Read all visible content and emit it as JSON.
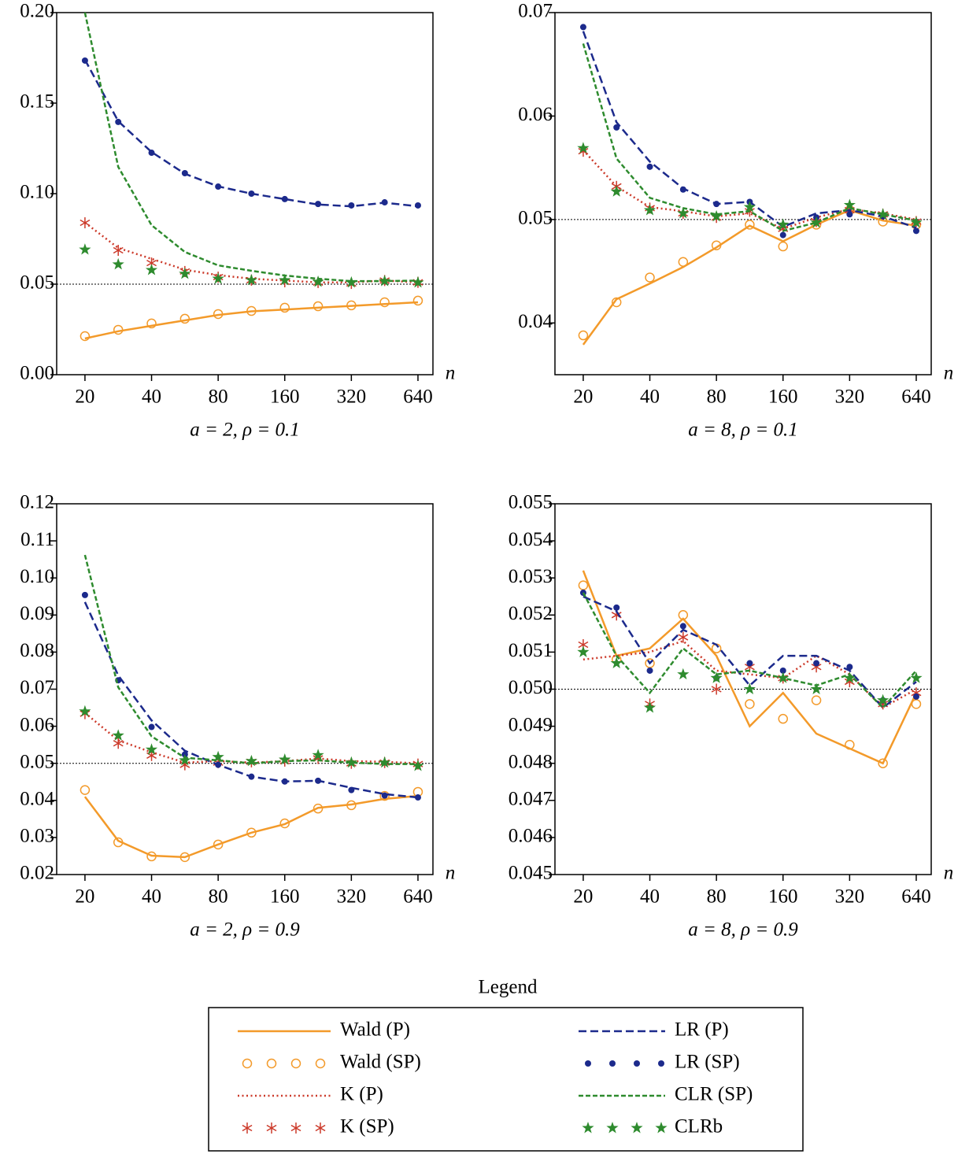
{
  "chart_data": [
    {
      "type": "line",
      "xlabel": "a = 2, ρ = 0.1",
      "xaxis_symbol": "n",
      "xlog": true,
      "x": [
        20,
        28.28,
        40,
        56.57,
        80,
        113.1,
        160,
        226.3,
        320,
        452.5,
        640
      ],
      "xlim": [
        14.9,
        748
      ],
      "xticks": [
        20,
        40,
        80,
        160,
        320,
        640
      ],
      "ylim": [
        0,
        0.2
      ],
      "yticks": [
        {
          "value": 0,
          "label": "0.00"
        },
        0.05,
        {
          "value": 0.1,
          "label": "0.10"
        },
        0.15,
        {
          "value": 0.2,
          "label": "0.20"
        }
      ],
      "hline": 0.05,
      "legend_title": "Legend",
      "series": [
        {
          "name": "Wald (P)",
          "color": "#f39a2a",
          "style": "solid",
          "values": [
            0.02,
            0.024,
            0.027,
            0.03,
            0.033,
            0.035,
            0.036,
            0.037,
            0.038,
            0.039,
            0.04
          ]
        },
        {
          "name": "Wald (SP)",
          "color": "#f39a2a",
          "marker": "circle",
          "values": [
            0.0213,
            0.0248,
            0.0283,
            0.0309,
            0.0335,
            0.0352,
            0.037,
            0.0378,
            0.0383,
            0.04,
            0.0409
          ]
        },
        {
          "name": "K (P)",
          "color": "#cc3a2a",
          "style": "dotted",
          "values": [
            0.084,
            0.07,
            0.064,
            0.058,
            0.055,
            0.053,
            0.052,
            0.051,
            0.051,
            0.052,
            0.051
          ]
        },
        {
          "name": "K (SP)",
          "color": "#cc3a2a",
          "marker": "asterisk",
          "values": [
            0.0839,
            0.0687,
            0.0617,
            0.057,
            0.0539,
            0.0522,
            0.0513,
            0.0509,
            0.0504,
            0.052,
            0.051
          ]
        },
        {
          "name": "LR (P)",
          "color": "#1c2a8c",
          "style": "dashed",
          "values": [
            0.174,
            0.14,
            0.123,
            0.111,
            0.104,
            0.1,
            0.097,
            0.094,
            0.093,
            0.095,
            0.093
          ]
        },
        {
          "name": "LR (SP)",
          "color": "#1c2a8c",
          "marker": "dot",
          "values": [
            0.1735,
            0.1396,
            0.1226,
            0.1113,
            0.1039,
            0.1,
            0.097,
            0.0943,
            0.0935,
            0.0952,
            0.0935
          ]
        },
        {
          "name": "CLR (SP)",
          "color": "#2e8b2e",
          "style": "short-dash",
          "values": [
            0.2,
            0.1148,
            0.0826,
            0.0678,
            0.0604,
            0.0574,
            0.0548,
            0.053,
            0.0517,
            0.0517,
            0.052
          ]
        },
        {
          "name": "CLRb",
          "color": "#2e8b2e",
          "marker": "star",
          "values": [
            0.0691,
            0.0609,
            0.0578,
            0.0557,
            0.053,
            0.0522,
            0.0522,
            0.0513,
            0.0509,
            0.0517,
            0.0509
          ]
        }
      ]
    },
    {
      "type": "line",
      "xlabel": "a = 8, ρ = 0.1",
      "xaxis_symbol": "n",
      "xlog": true,
      "x": [
        20,
        28.28,
        40,
        56.57,
        80,
        113.1,
        160,
        226.3,
        320,
        452.5,
        640
      ],
      "xlim": [
        14.9,
        748
      ],
      "xticks": [
        20,
        40,
        80,
        160,
        320,
        640
      ],
      "ylim": [
        0.035,
        0.07
      ],
      "yticks": [
        0.04,
        0.05,
        0.06,
        0.07
      ],
      "hline": 0.05,
      "series": [
        {
          "name": "Wald (P)",
          "color": "#f39a2a",
          "style": "solid",
          "values": [
            0.0379,
            0.0423,
            0.0438,
            0.0454,
            0.0473,
            0.0494,
            0.0479,
            0.0495,
            0.0509,
            0.0499,
            0.0494
          ]
        },
        {
          "name": "Wald (SP)",
          "color": "#f39a2a",
          "marker": "circle",
          "values": [
            0.0388,
            0.042,
            0.0444,
            0.0459,
            0.0475,
            0.0495,
            0.0474,
            0.0495,
            0.0509,
            0.0498,
            0.0495
          ]
        },
        {
          "name": "K (P)",
          "color": "#cc3a2a",
          "style": "dotted",
          "values": [
            0.0567,
            0.0532,
            0.0512,
            0.0508,
            0.0503,
            0.0506,
            0.0491,
            0.0502,
            0.051,
            0.0506,
            0.05
          ]
        },
        {
          "name": "K (SP)",
          "color": "#cc3a2a",
          "marker": "asterisk",
          "values": [
            0.0566,
            0.0532,
            0.0511,
            0.0506,
            0.0502,
            0.0508,
            0.0491,
            0.0498,
            0.0509,
            0.0505,
            0.0498
          ]
        },
        {
          "name": "LR (P)",
          "color": "#1c2a8c",
          "style": "dashed",
          "values": [
            0.0682,
            0.0594,
            0.0556,
            0.053,
            0.0515,
            0.0517,
            0.0493,
            0.0506,
            0.0509,
            0.0503,
            0.0492
          ]
        },
        {
          "name": "LR (SP)",
          "color": "#1c2a8c",
          "marker": "dot",
          "values": [
            0.0686,
            0.0589,
            0.0551,
            0.0529,
            0.0515,
            0.0517,
            0.0485,
            0.0502,
            0.0505,
            0.0503,
            0.0489
          ]
        },
        {
          "name": "CLR (SP)",
          "color": "#2e8b2e",
          "style": "short-dash",
          "values": [
            0.067,
            0.0559,
            0.0521,
            0.0511,
            0.0505,
            0.0508,
            0.0489,
            0.0497,
            0.0511,
            0.0505,
            0.0499
          ]
        },
        {
          "name": "CLRb",
          "color": "#2e8b2e",
          "marker": "star",
          "values": [
            0.0569,
            0.0527,
            0.0509,
            0.0506,
            0.0503,
            0.0512,
            0.0495,
            0.0497,
            0.0514,
            0.0505,
            0.0497
          ]
        }
      ]
    },
    {
      "type": "line",
      "xlabel": "a = 2, ρ = 0.9",
      "xaxis_symbol": "n",
      "xlog": true,
      "x": [
        20,
        28.28,
        40,
        56.57,
        80,
        113.1,
        160,
        226.3,
        320,
        452.5,
        640
      ],
      "xlim": [
        14.9,
        748
      ],
      "xticks": [
        20,
        40,
        80,
        160,
        320,
        640
      ],
      "ylim": [
        0.02,
        0.12
      ],
      "yticks": [
        0.02,
        0.03,
        0.04,
        0.05,
        0.06,
        0.07,
        0.08,
        0.09,
        {
          "value": 0.1,
          "label": "0.10"
        },
        0.11,
        0.12
      ],
      "hline": 0.05,
      "series": [
        {
          "name": "Wald (P)",
          "color": "#f39a2a",
          "style": "solid",
          "values": [
            0.041,
            0.0291,
            0.0251,
            0.0247,
            0.0281,
            0.0313,
            0.0336,
            0.038,
            0.0389,
            0.0404,
            0.0412
          ]
        },
        {
          "name": "Wald (SP)",
          "color": "#f39a2a",
          "marker": "circle",
          "values": [
            0.0428,
            0.0287,
            0.0249,
            0.0247,
            0.0281,
            0.0313,
            0.0338,
            0.0378,
            0.0387,
            0.0412,
            0.0423
          ]
        },
        {
          "name": "K (P)",
          "color": "#cc3a2a",
          "style": "dotted",
          "values": [
            0.0636,
            0.0562,
            0.053,
            0.0502,
            0.0506,
            0.0502,
            0.0506,
            0.0513,
            0.0506,
            0.0504,
            0.05
          ]
        },
        {
          "name": "K (SP)",
          "color": "#cc3a2a",
          "marker": "asterisk",
          "values": [
            0.0634,
            0.0554,
            0.0521,
            0.0496,
            0.0502,
            0.0504,
            0.0506,
            0.0513,
            0.05,
            0.0502,
            0.0498
          ]
        },
        {
          "name": "LR (P)",
          "color": "#1c2a8c",
          "style": "dashed",
          "values": [
            0.0935,
            0.0737,
            0.0616,
            0.0534,
            0.0496,
            0.0464,
            0.0451,
            0.0453,
            0.0434,
            0.0417,
            0.0408
          ]
        },
        {
          "name": "LR (SP)",
          "color": "#1c2a8c",
          "marker": "dot",
          "values": [
            0.0954,
            0.0724,
            0.0598,
            0.0524,
            0.0496,
            0.0464,
            0.0451,
            0.0453,
            0.0428,
            0.0413,
            0.0408
          ]
        },
        {
          "name": "CLR (SP)",
          "color": "#2e8b2e",
          "style": "short-dash",
          "values": [
            0.1062,
            0.0705,
            0.0573,
            0.0515,
            0.0508,
            0.05,
            0.0506,
            0.0508,
            0.0502,
            0.0498,
            0.0498
          ]
        },
        {
          "name": "CLRb",
          "color": "#2e8b2e",
          "marker": "star",
          "values": [
            0.064,
            0.0575,
            0.0537,
            0.0508,
            0.0517,
            0.0506,
            0.051,
            0.0522,
            0.0502,
            0.0502,
            0.0493
          ]
        }
      ]
    },
    {
      "type": "line",
      "xlabel": "a = 8, ρ = 0.9",
      "xaxis_symbol": "n",
      "xlog": true,
      "x": [
        20,
        28.28,
        40,
        56.57,
        80,
        113.1,
        160,
        226.3,
        320,
        452.5,
        640
      ],
      "xlim": [
        14.9,
        748
      ],
      "xticks": [
        20,
        40,
        80,
        160,
        320,
        640
      ],
      "ylim": [
        0.045,
        0.055
      ],
      "yticks": [
        0.045,
        0.046,
        0.047,
        0.048,
        0.049,
        {
          "value": 0.05,
          "label": "0.050"
        },
        0.051,
        0.052,
        0.053,
        0.054,
        0.055
      ],
      "hline": 0.05,
      "series": [
        {
          "name": "Wald (P)",
          "color": "#f39a2a",
          "style": "solid",
          "values": [
            0.0532,
            0.0509,
            0.0511,
            0.0519,
            0.0509,
            0.049,
            0.0499,
            0.0488,
            0.0484,
            0.048,
            0.0499
          ]
        },
        {
          "name": "Wald (SP)",
          "color": "#f39a2a",
          "marker": "circle",
          "values": [
            0.0528,
            0.0508,
            0.0507,
            0.052,
            0.0511,
            0.0496,
            0.0492,
            0.0497,
            0.0485,
            0.048,
            0.0496
          ]
        },
        {
          "name": "K (P)",
          "color": "#cc3a2a",
          "style": "dotted",
          "values": [
            0.0508,
            0.0509,
            0.051,
            0.0513,
            0.0505,
            0.0504,
            0.0503,
            0.0509,
            0.0504,
            0.0495,
            0.05
          ]
        },
        {
          "name": "K (SP)",
          "color": "#cc3a2a",
          "marker": "asterisk",
          "values": [
            0.0512,
            0.052,
            0.0496,
            0.0514,
            0.05,
            0.0506,
            0.0503,
            0.0506,
            0.0502,
            0.0496,
            0.0499
          ]
        },
        {
          "name": "LR (P)",
          "color": "#1c2a8c",
          "style": "dashed",
          "values": [
            0.0525,
            0.0521,
            0.0507,
            0.0516,
            0.0512,
            0.0501,
            0.0509,
            0.0509,
            0.0505,
            0.0495,
            0.0502
          ]
        },
        {
          "name": "LR (SP)",
          "color": "#1c2a8c",
          "marker": "dot",
          "values": [
            0.0526,
            0.0522,
            0.0505,
            0.0517,
            0.0503,
            0.0507,
            0.0505,
            0.0507,
            0.0506,
            0.0497,
            0.0498
          ]
        },
        {
          "name": "CLR (SP)",
          "color": "#2e8b2e",
          "style": "short-dash",
          "values": [
            0.0526,
            0.0509,
            0.0499,
            0.0511,
            0.0504,
            0.0505,
            0.0503,
            0.0501,
            0.0504,
            0.0495,
            0.0505
          ]
        },
        {
          "name": "CLRb",
          "color": "#2e8b2e",
          "marker": "star",
          "values": [
            0.051,
            0.0507,
            0.0495,
            0.0504,
            0.0503,
            0.05,
            0.0503,
            0.05,
            0.0503,
            0.0497,
            0.0503
          ]
        }
      ]
    }
  ]
}
